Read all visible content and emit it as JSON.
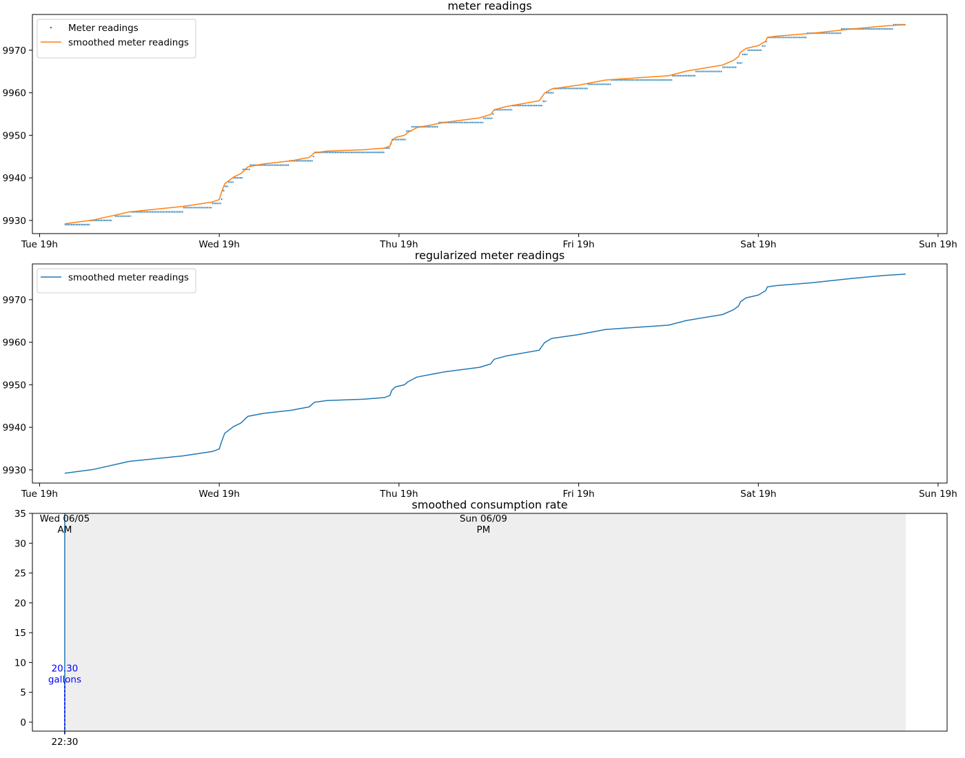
{
  "chart_data": [
    {
      "type": "line",
      "title": "meter readings",
      "xlabel": "",
      "ylabel": "",
      "x_ticks": [
        "Tue 19h",
        "Wed 19h",
        "Thu 19h",
        "Fri 19h",
        "Sat 19h",
        "Sun 19h"
      ],
      "y_ticks": [
        9930,
        9940,
        9950,
        9960,
        9970
      ],
      "y_tick_labels": [
        "9930",
        "9940",
        "9950",
        "9960",
        "9970"
      ],
      "xlim": [
        -0.04,
        5.05
      ],
      "ylim": [
        9926.9,
        9978.4
      ],
      "legend": {
        "position": "upper left",
        "entries": [
          "Meter readings",
          "smoothed meter readings"
        ]
      },
      "series": [
        {
          "name": "Meter readings",
          "kind": "scatter",
          "color": "#1f77b4",
          "steps": [
            [
              0.14,
              0.28,
              9929
            ],
            [
              0.28,
              0.4,
              9930
            ],
            [
              0.42,
              0.51,
              9931
            ],
            [
              0.51,
              0.8,
              9932
            ],
            [
              0.8,
              0.96,
              9933
            ],
            [
              0.96,
              1.01,
              9934
            ],
            [
              1.01,
              1.02,
              9935
            ],
            [
              1.02,
              1.03,
              9937
            ],
            [
              1.03,
              1.05,
              9938
            ],
            [
              1.05,
              1.08,
              9939
            ],
            [
              1.08,
              1.13,
              9940
            ],
            [
              1.13,
              1.17,
              9942
            ],
            [
              1.17,
              1.39,
              9943
            ],
            [
              1.39,
              1.52,
              9944
            ],
            [
              1.52,
              1.53,
              9945
            ],
            [
              1.53,
              1.92,
              9946
            ],
            [
              1.92,
              1.95,
              9947
            ],
            [
              1.95,
              1.96,
              9948
            ],
            [
              1.96,
              2.04,
              9949
            ],
            [
              2.04,
              2.07,
              9951
            ],
            [
              2.07,
              2.22,
              9952
            ],
            [
              2.22,
              2.47,
              9953
            ],
            [
              2.47,
              2.52,
              9954
            ],
            [
              2.52,
              2.53,
              9955
            ],
            [
              2.53,
              2.63,
              9956
            ],
            [
              2.63,
              2.8,
              9957
            ],
            [
              2.8,
              2.82,
              9958
            ],
            [
              2.82,
              2.86,
              9960
            ],
            [
              2.86,
              3.05,
              9961
            ],
            [
              3.05,
              3.18,
              9962
            ],
            [
              3.18,
              3.52,
              9963
            ],
            [
              3.52,
              3.65,
              9964
            ],
            [
              3.65,
              3.8,
              9965
            ],
            [
              3.8,
              3.88,
              9966
            ],
            [
              3.88,
              3.91,
              9967
            ],
            [
              3.91,
              3.94,
              9969
            ],
            [
              3.94,
              4.02,
              9970
            ],
            [
              4.02,
              4.04,
              9971
            ],
            [
              4.04,
              4.05,
              9972
            ],
            [
              4.05,
              4.27,
              9973
            ],
            [
              4.27,
              4.46,
              9974
            ],
            [
              4.46,
              4.75,
              9975
            ],
            [
              4.75,
              4.82,
              9976
            ]
          ]
        },
        {
          "name": "smoothed meter readings",
          "kind": "line",
          "color": "#ff7f0e",
          "x": [
            0.14,
            0.3,
            0.5,
            0.8,
            0.96,
            1.0,
            1.01,
            1.03,
            1.08,
            1.12,
            1.16,
            1.25,
            1.4,
            1.5,
            1.53,
            1.6,
            1.8,
            1.92,
            1.95,
            1.96,
            1.98,
            2.03,
            2.05,
            2.1,
            2.25,
            2.45,
            2.51,
            2.53,
            2.6,
            2.78,
            2.81,
            2.85,
            3.0,
            3.15,
            3.5,
            3.6,
            3.8,
            3.86,
            3.89,
            3.9,
            3.93,
            4.0,
            4.04,
            4.05,
            4.1,
            4.3,
            4.5,
            4.7,
            4.82
          ],
          "y": [
            9929.2,
            9930.1,
            9932.0,
            9933.3,
            9934.3,
            9934.9,
            9936.3,
            9938.6,
            9940.2,
            9941.0,
            9942.6,
            9943.3,
            9944.0,
            9944.8,
            9945.9,
            9946.3,
            9946.6,
            9947.0,
            9947.5,
            9948.7,
            9949.5,
            9950.0,
            9950.7,
            9951.8,
            9953.0,
            9954.1,
            9954.9,
            9956.0,
            9956.8,
            9958.1,
            9959.9,
            9960.9,
            9961.8,
            9963.0,
            9964.0,
            9965.1,
            9966.5,
            9967.6,
            9968.5,
            9969.5,
            9970.4,
            9971.1,
            9972.1,
            9973.0,
            9973.3,
            9974.0,
            9974.9,
            9975.7,
            9976.0
          ]
        }
      ]
    },
    {
      "type": "line",
      "title": "regularized meter readings",
      "xlabel": "",
      "ylabel": "",
      "x_ticks": [
        "Tue 19h",
        "Wed 19h",
        "Thu 19h",
        "Fri 19h",
        "Sat 19h",
        "Sun 19h"
      ],
      "y_ticks": [
        9930,
        9940,
        9950,
        9960,
        9970
      ],
      "y_tick_labels": [
        "9930",
        "9940",
        "9950",
        "9960",
        "9970"
      ],
      "xlim": [
        -0.04,
        5.05
      ],
      "ylim": [
        9926.9,
        9978.4
      ],
      "legend": {
        "position": "upper left",
        "entries": [
          "smoothed meter readings"
        ]
      },
      "series": [
        {
          "name": "smoothed meter readings",
          "kind": "line",
          "color": "#1f77b4",
          "x": [
            0.14,
            0.3,
            0.5,
            0.8,
            0.96,
            1.0,
            1.01,
            1.03,
            1.08,
            1.12,
            1.16,
            1.25,
            1.4,
            1.5,
            1.53,
            1.6,
            1.8,
            1.92,
            1.95,
            1.96,
            1.98,
            2.03,
            2.05,
            2.1,
            2.25,
            2.45,
            2.51,
            2.53,
            2.6,
            2.78,
            2.81,
            2.85,
            3.0,
            3.15,
            3.5,
            3.6,
            3.8,
            3.86,
            3.89,
            3.9,
            3.93,
            4.0,
            4.04,
            4.05,
            4.1,
            4.3,
            4.5,
            4.7,
            4.82
          ],
          "y": [
            9929.2,
            9930.1,
            9932.0,
            9933.3,
            9934.3,
            9934.9,
            9936.3,
            9938.6,
            9940.2,
            9941.0,
            9942.6,
            9943.3,
            9944.0,
            9944.8,
            9945.9,
            9946.3,
            9946.6,
            9947.0,
            9947.5,
            9948.7,
            9949.5,
            9950.0,
            9950.7,
            9951.8,
            9953.0,
            9954.1,
            9954.9,
            9956.0,
            9956.8,
            9958.1,
            9959.9,
            9960.9,
            9961.8,
            9963.0,
            9964.0,
            9965.1,
            9966.5,
            9967.6,
            9968.5,
            9969.5,
            9970.4,
            9971.1,
            9972.1,
            9973.0,
            9973.3,
            9974.0,
            9974.9,
            9975.7,
            9976.0
          ]
        }
      ]
    },
    {
      "type": "line",
      "title": "smoothed consumption rate",
      "xlabel": "",
      "ylabel": "",
      "y_ticks": [
        0,
        5,
        10,
        15,
        20,
        25,
        30,
        35
      ],
      "y_tick_labels": [
        "0",
        "5",
        "10",
        "15",
        "20",
        "25",
        "30",
        "35"
      ],
      "x_tick_label": "22:30",
      "xlim": [
        -0.04,
        5.05
      ],
      "ylim": [
        -1.5,
        35
      ],
      "spike": {
        "x": 0.14,
        "y_top": 35,
        "color": "#1f77b4"
      },
      "dashed_marker": {
        "x": 0.14,
        "y_top": 7,
        "color": "#0000ff"
      },
      "shaded_span": {
        "x_start": 0.14,
        "x_end": 4.82,
        "color": "#eeeeee"
      },
      "annotations": [
        {
          "text": [
            "Sun 06/09",
            "PM"
          ],
          "x": 2.47,
          "y": 35
        },
        {
          "text": [
            "Wed 06/05",
            "AM"
          ],
          "x": 0.14,
          "y": 35
        },
        {
          "text": [
            "20.30",
            "gallons"
          ],
          "x": 0.14,
          "y": 8.5,
          "color": "#0000ff"
        }
      ]
    }
  ]
}
